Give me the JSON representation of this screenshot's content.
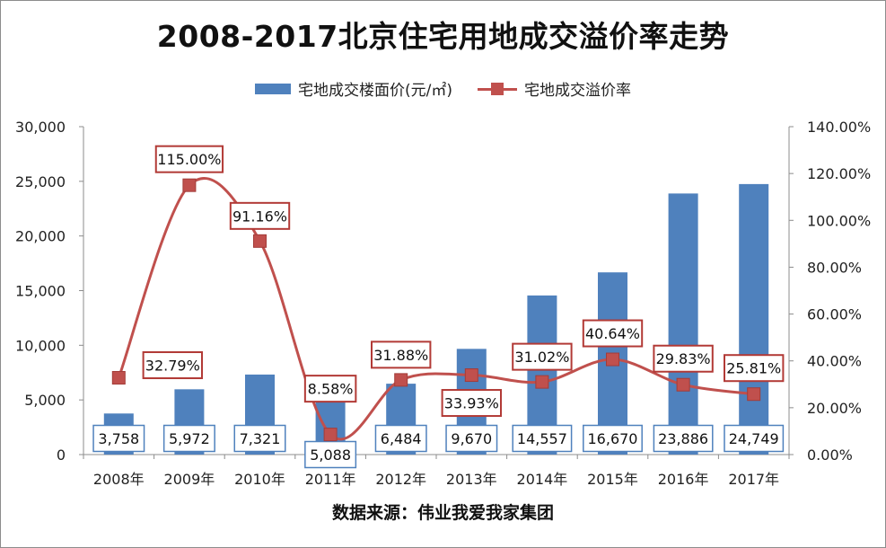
{
  "chart_data": {
    "type": "bar+line",
    "title": "2008-2017北京住宅用地成交溢价率走势",
    "categories": [
      "2008年",
      "2009年",
      "2010年",
      "2011年",
      "2012年",
      "2013年",
      "2014年",
      "2015年",
      "2016年",
      "2017年"
    ],
    "series": [
      {
        "name": "宅地成交楼面价(元/㎡)",
        "type": "bar",
        "axis": "left",
        "color": "#4f81bd",
        "values": [
          3758,
          5972,
          7321,
          5088,
          6484,
          9670,
          14557,
          16670,
          23886,
          24749
        ],
        "labels": [
          "3,758",
          "5,972",
          "7,321",
          "5,088",
          "6,484",
          "9,670",
          "14,557",
          "16,670",
          "23,886",
          "24,749"
        ]
      },
      {
        "name": "宅地成交溢价率",
        "type": "line",
        "axis": "right",
        "color": "#c0504d",
        "values": [
          32.79,
          115.0,
          91.16,
          8.58,
          31.88,
          33.93,
          31.02,
          40.64,
          29.83,
          25.81
        ],
        "labels": [
          "32.79%",
          "115.00%",
          "91.16%",
          "8.58%",
          "31.88%",
          "33.93%",
          "31.02%",
          "40.64%",
          "29.83%",
          "25.81%"
        ]
      }
    ],
    "y_left": {
      "ylim": [
        0,
        30000
      ],
      "ticks": [
        "0",
        "5,000",
        "10,000",
        "15,000",
        "20,000",
        "25,000",
        "30,000"
      ]
    },
    "y_right": {
      "ylim": [
        0,
        140
      ],
      "ticks": [
        "0.00%",
        "20.00%",
        "40.00%",
        "60.00%",
        "80.00%",
        "100.00%",
        "120.00%",
        "140.00%"
      ]
    },
    "legend_position": "top-center",
    "grid": false
  },
  "legend": {
    "bar_label": "宅地成交楼面价(元/㎡)",
    "line_label": "宅地成交溢价率"
  },
  "source_note": "数据来源：伟业我爱我家集团"
}
